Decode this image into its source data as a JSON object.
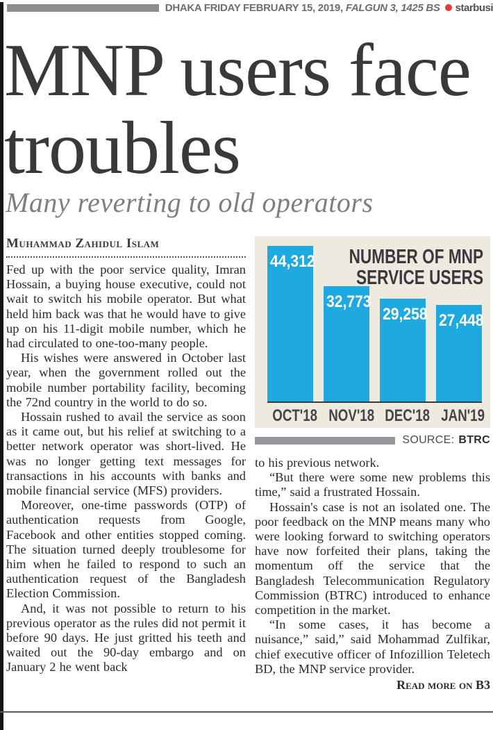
{
  "masthead": {
    "date_line": "DHAKA FRIDAY FEBRUARY 15, 2019,",
    "calendar_note": "FALGUN 3, 1425 BS",
    "brand": "starbusi",
    "accent_color": "#e23a3f"
  },
  "article": {
    "headline_line1": "MNP users face",
    "headline_line2": "troubles",
    "subhead": "Many reverting to old operators",
    "byline": "Muhammad Zahidul Islam",
    "left_paragraphs": [
      "Fed up with the poor service quality, Imran Hossain, a buying house executive, could not wait to switch his mobile operator. But what held him back was that he would have to give up on his 11-digit mobile number, which he had circulated to one-too-many people.",
      "His wishes were answered in October last year, when the government rolled out the mobile number portability facility, becoming the 72nd country in the world to do so.",
      "Hossain rushed to avail the service as soon as it came out, but his relief at switching to a better network operator was short-lived. He was no longer getting text messages for transactions in his accounts with banks and mobile financial service (MFS) providers.",
      "Moreover, one-time passwords (OTP) of authentication requests from Google, Facebook and other entities stopped coming. The situation turned deeply troublesome for him when he failed to respond to such an authentication request of the Bangladesh Election Commission.",
      "And, it was not possible to return to his previous operator as the rules did not permit it before 90 days. He just gritted his teeth and waited out the 90-day embargo and on January 2 he went back"
    ],
    "right_paragraphs": [
      "to his previous network.",
      "“But there were some new problems this time,” said a frustrated Hossain.",
      "Hossain's case is not an isolated one. The poor feedback on the MNP means many who were looking forward to switching operators have now forfeited their plans, taking the momentum off the service that the Bangladesh Telecommunication Regulatory Commission (BTRC) introduced to enhance competition in the market.",
      "“In some cases, it has become a nuisance,” said,” said Mohammad Zulfikar, chief executive officer of Infozillion Teletech BD, the MNP service provider."
    ],
    "read_more": "Read more on B3"
  },
  "chart_data": {
    "type": "bar",
    "title": "NUMBER OF MNP SERVICE USERS",
    "title_lines": [
      "NUMBER OF MNP",
      "SERVICE USERS"
    ],
    "categories": [
      "OCT'18",
      "NOV'18",
      "DEC'18",
      "JAN'19"
    ],
    "values": [
      44312,
      32773,
      29258,
      27448
    ],
    "values_formatted": [
      "44,312",
      "32,773",
      "29,258",
      "27,448"
    ],
    "bar_color": "#1ea9e1",
    "background_color": "#eeeae0",
    "ylim": [
      0,
      47000
    ],
    "grid": false,
    "legend": "none",
    "source_label": "SOURCE:",
    "source_value": "BTRC"
  }
}
